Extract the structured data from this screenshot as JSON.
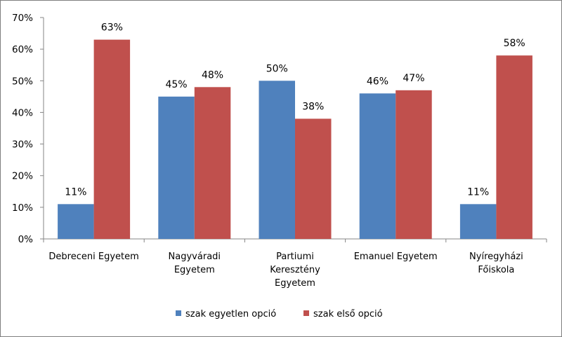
{
  "chart_data": {
    "type": "bar",
    "categories": [
      [
        "Debreceni Egyetem"
      ],
      [
        "Nagyváradi",
        "Egyetem"
      ],
      [
        "Partiumi",
        "Keresztény",
        "Egyetem"
      ],
      [
        "Emanuel Egyetem"
      ],
      [
        "Nyíregyházi",
        "Főiskola"
      ]
    ],
    "series": [
      {
        "name": "szak egyetlen opció",
        "color": "#4f81bd",
        "values": [
          11,
          45,
          50,
          46,
          11
        ],
        "labels": [
          "11%",
          "45%",
          "50%",
          "46%",
          "11%"
        ]
      },
      {
        "name": "szak első opció",
        "color": "#c0504d",
        "values": [
          63,
          48,
          38,
          47,
          58
        ],
        "labels": [
          "63%",
          "48%",
          "38%",
          "47%",
          "58%"
        ]
      }
    ],
    "yticks": [
      "0%",
      "10%",
      "20%",
      "30%",
      "40%",
      "50%",
      "60%",
      "70%"
    ],
    "ylim": [
      0,
      70
    ],
    "grid": false,
    "legend_position": "bottom"
  }
}
